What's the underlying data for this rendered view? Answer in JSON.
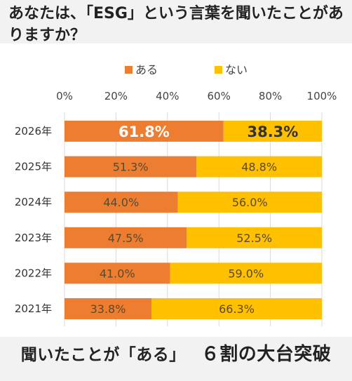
{
  "title": "あなたは、「ESG」という言葉を聞いたことがありますか？",
  "footer": {
    "lead": "聞いたことが「ある」",
    "headline": "６割の大台突破"
  },
  "colors": {
    "aru": "#ed7d31",
    "nai": "#ffc000"
  },
  "chart_data": {
    "type": "bar",
    "orientation": "horizontal",
    "stacked": true,
    "categories": [
      "2026年",
      "2025年",
      "2024年",
      "2023年",
      "2022年",
      "2021年"
    ],
    "series": [
      {
        "name": "ある",
        "values": [
          61.8,
          51.3,
          44.0,
          47.5,
          41.0,
          33.8
        ],
        "labels": [
          "61.8%",
          "51.3%",
          "44.0%",
          "47.5%",
          "41.0%",
          "33.8%"
        ]
      },
      {
        "name": "ない",
        "values": [
          38.3,
          48.8,
          56.0,
          52.5,
          59.0,
          66.3
        ],
        "labels": [
          "38.3%",
          "48.8%",
          "56.0%",
          "52.5%",
          "59.0%",
          "66.3%"
        ]
      }
    ],
    "xticks": [
      "0%",
      "20%",
      "40%",
      "60%",
      "80%",
      "100%"
    ],
    "xlim": [
      0,
      100
    ],
    "highlight_category": "2026年",
    "legend_position": "top",
    "grid": true
  }
}
